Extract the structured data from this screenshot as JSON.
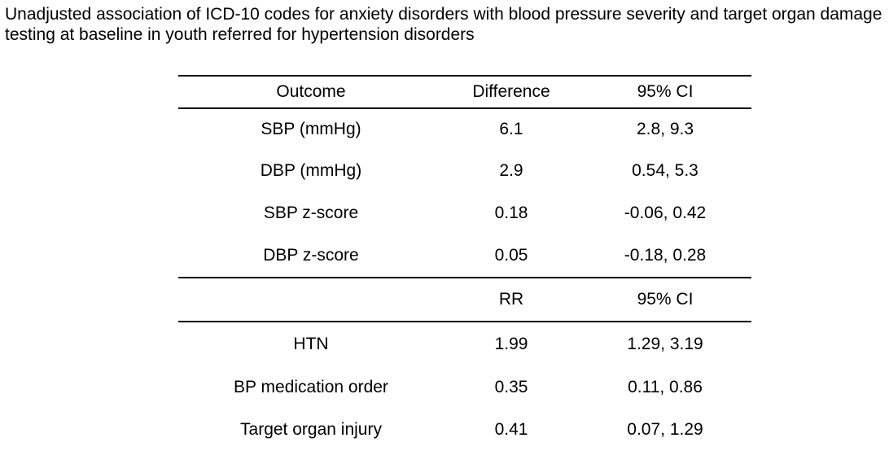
{
  "caption": "Unadjusted association of ICD-10 codes for anxiety disorders with blood pressure severity and target organ damage testing at baseline in youth referred for hypertension disorders",
  "table": {
    "header1": [
      "Outcome",
      "Difference",
      "95% CI"
    ],
    "section1_rows": [
      {
        "outcome": "SBP (mmHg)",
        "value": "6.1",
        "ci": "2.8, 9.3"
      },
      {
        "outcome": "DBP (mmHg)",
        "value": "2.9",
        "ci": "0.54, 5.3"
      },
      {
        "outcome": "SBP z-score",
        "value": "0.18",
        "ci": "-0.06, 0.42"
      },
      {
        "outcome": "DBP z-score",
        "value": "0.05",
        "ci": "-0.18, 0.28"
      }
    ],
    "header2": [
      "",
      "RR",
      "95% CI"
    ],
    "section2_rows": [
      {
        "outcome": "HTN",
        "value": "1.99",
        "ci": "1.29, 3.19"
      },
      {
        "outcome": "BP medication order",
        "value": "0.35",
        "ci": "0.11, 0.86"
      },
      {
        "outcome": "Target organ injury",
        "value": "0.41",
        "ci": "0.07, 1.29"
      }
    ]
  }
}
